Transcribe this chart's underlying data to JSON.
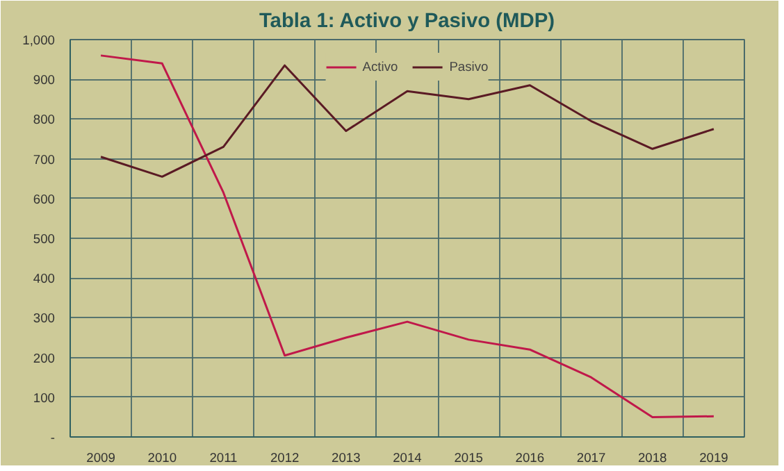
{
  "chart_data": {
    "type": "line",
    "title": "Tabla 1: Activo y Pasivo (MDP)",
    "categories": [
      "2009",
      "2010",
      "2011",
      "2012",
      "2013",
      "2014",
      "2015",
      "2016",
      "2017",
      "2018",
      "2019"
    ],
    "series": [
      {
        "name": "Activo",
        "color": "#c0184a",
        "values": [
          960,
          940,
          615,
          205,
          250,
          290,
          245,
          220,
          150,
          50,
          52
        ]
      },
      {
        "name": "Pasivo",
        "color": "#5a1a24",
        "values": [
          705,
          655,
          730,
          935,
          770,
          870,
          850,
          885,
          795,
          725,
          775
        ]
      }
    ],
    "ylim": [
      0,
      1000
    ],
    "yticks": [
      {
        "value": 0,
        "label": "-"
      },
      100,
      200,
      300,
      400,
      500,
      600,
      700,
      800,
      900,
      {
        "value": 1000,
        "label": "1,000"
      }
    ],
    "grid": true,
    "legend": "top",
    "marker": "none",
    "line_style": "solid"
  }
}
